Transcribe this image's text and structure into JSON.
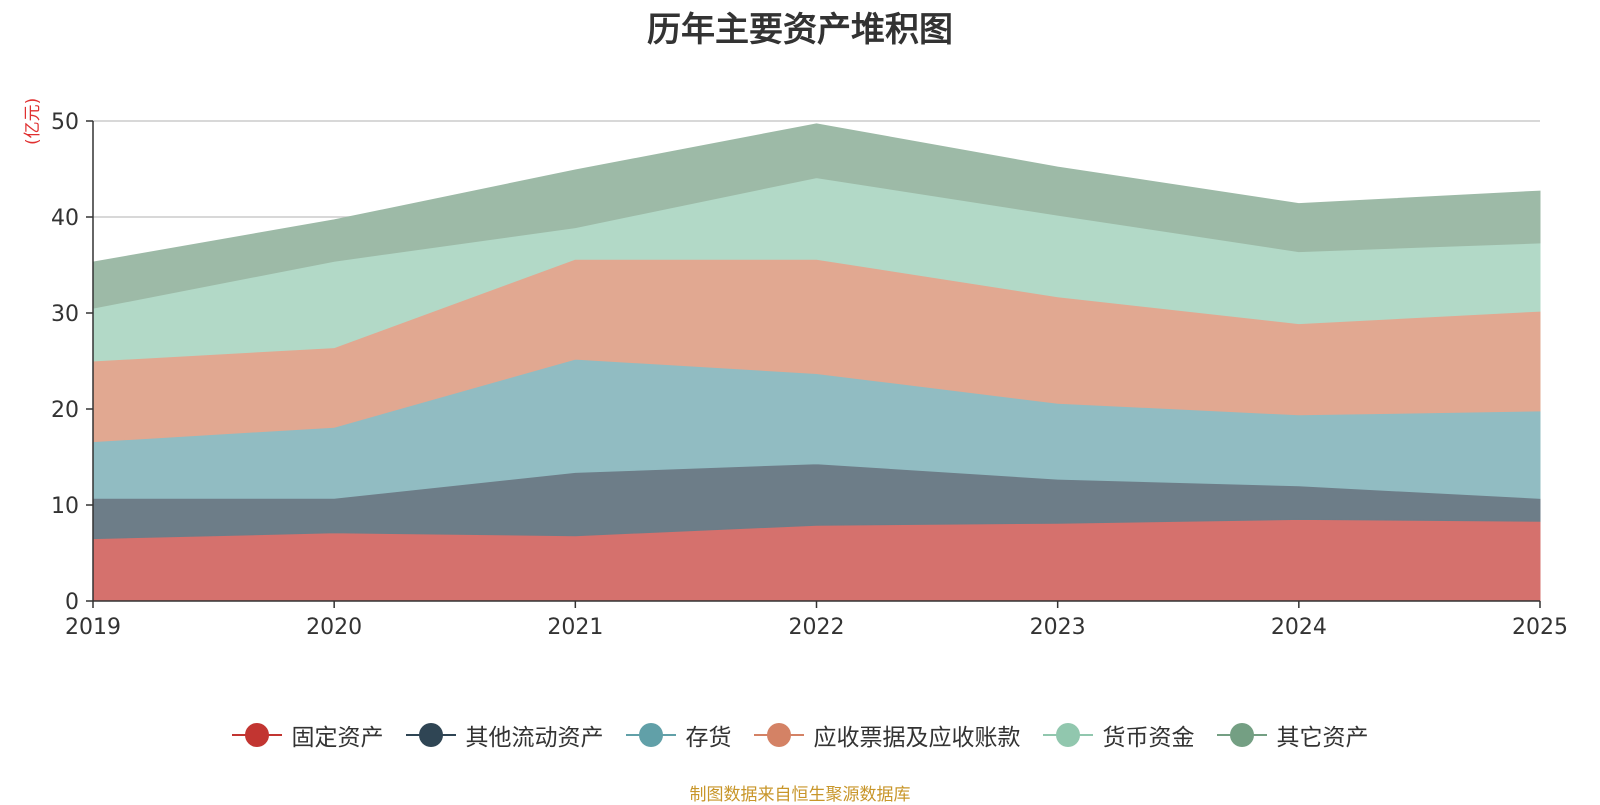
{
  "title": "历年主要资产堆积图",
  "source": "制图数据来自恒生聚源数据库",
  "chart_data": {
    "type": "area",
    "stacked": true,
    "title": "历年主要资产堆积图",
    "ylabel": "(亿元)",
    "xlabel": "",
    "ylim": [
      0,
      50
    ],
    "yticks": [
      0,
      10,
      20,
      30,
      40,
      50
    ],
    "grid": true,
    "legend_position": "bottom",
    "categories": [
      "2019",
      "2020",
      "2021",
      "2022",
      "2023",
      "2024",
      "2025"
    ],
    "series": [
      {
        "name": "固定资产",
        "legend_color": "#c23531",
        "fill_color": "#d5716d",
        "values": [
          6.5,
          7.1,
          6.8,
          7.9,
          8.1,
          8.5,
          8.3
        ]
      },
      {
        "name": "其他流动资产",
        "legend_color": "#2f4554",
        "fill_color": "#6d7d88",
        "values": [
          4.2,
          3.6,
          6.6,
          6.4,
          4.6,
          3.5,
          2.4
        ]
      },
      {
        "name": "存货",
        "legend_color": "#61a0a8",
        "fill_color": "#91bcc2",
        "values": [
          5.9,
          7.4,
          11.8,
          9.4,
          7.9,
          7.4,
          9.1
        ]
      },
      {
        "name": "应收票据及应收账款",
        "legend_color": "#d48265",
        "fill_color": "#e1a891",
        "values": [
          8.4,
          8.3,
          10.4,
          11.9,
          11.1,
          9.5,
          10.4
        ]
      },
      {
        "name": "货币资金",
        "legend_color": "#91c7ae",
        "fill_color": "#b2d9c7",
        "values": [
          5.5,
          9.0,
          3.3,
          8.5,
          8.5,
          7.5,
          7.1
        ]
      },
      {
        "name": "其它资产",
        "legend_color": "#749f83",
        "fill_color": "#9dbaa7",
        "values": [
          4.8,
          4.3,
          6.0,
          5.6,
          5.0,
          5.0,
          5.4
        ]
      }
    ]
  }
}
